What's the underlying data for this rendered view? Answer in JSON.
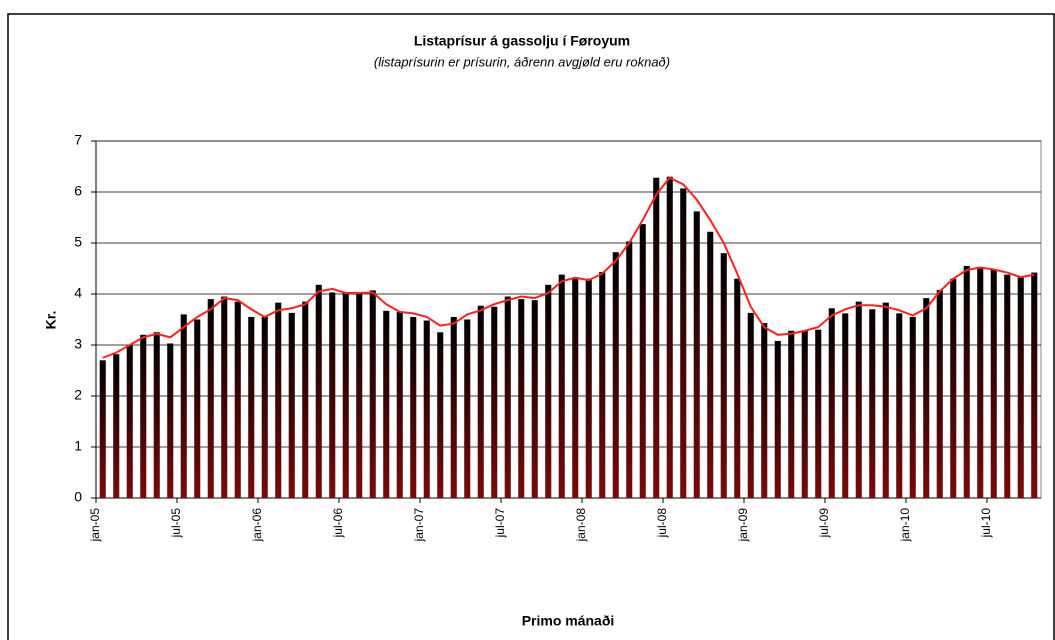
{
  "chart_data": {
    "type": "bar",
    "title": "Listaprísur á gassolju í Føroyum",
    "subtitle": "(listaprísurin er prísurin, áðrenn avgjøld eru roknað)",
    "y_label": "Kr.",
    "x_label": "Primo mánaði",
    "categories": [
      "jan-05",
      null,
      null,
      null,
      null,
      null,
      "jul-05",
      null,
      null,
      null,
      null,
      null,
      "jan-06",
      null,
      null,
      null,
      null,
      null,
      "jul-06",
      null,
      null,
      null,
      null,
      null,
      "jan-07",
      null,
      null,
      null,
      null,
      null,
      "jul-07",
      null,
      null,
      null,
      null,
      null,
      "jan-08",
      null,
      null,
      null,
      null,
      null,
      "jul-08",
      null,
      null,
      null,
      null,
      null,
      "jan-09",
      null,
      null,
      null,
      null,
      null,
      "jul-09",
      null,
      null,
      null,
      null,
      null,
      "jan-10",
      null,
      null,
      null,
      null,
      null,
      "jul-10",
      null,
      null,
      null
    ],
    "series": [
      {
        "type": "bar",
        "color": "#7a0a0a",
        "values": [
          2.7,
          2.82,
          3.0,
          3.2,
          3.25,
          3.03,
          3.6,
          3.5,
          3.9,
          3.95,
          3.85,
          3.55,
          3.55,
          3.83,
          3.63,
          3.85,
          4.18,
          4.03,
          4.03,
          4.03,
          4.07,
          3.67,
          3.65,
          3.55,
          3.48,
          3.25,
          3.55,
          3.5,
          3.77,
          3.75,
          3.95,
          3.9,
          3.88,
          4.18,
          4.38,
          4.3,
          4.3,
          4.43,
          4.82,
          5.03,
          5.37,
          6.28,
          6.3,
          6.07,
          5.62,
          5.22,
          4.8,
          4.3,
          3.63,
          3.43,
          3.08,
          3.28,
          3.28,
          3.3,
          3.72,
          3.62,
          3.85,
          3.7,
          3.83,
          3.62,
          3.55,
          3.92,
          4.08,
          4.3,
          4.55,
          4.5,
          4.48,
          4.38,
          4.35,
          4.42
        ]
      },
      {
        "type": "line",
        "color": "#ff2020",
        "values": [
          2.75,
          2.85,
          3.0,
          3.15,
          3.22,
          3.15,
          3.35,
          3.55,
          3.7,
          3.92,
          3.88,
          3.7,
          3.55,
          3.68,
          3.72,
          3.8,
          4.05,
          4.1,
          4.02,
          4.02,
          4.03,
          3.8,
          3.65,
          3.62,
          3.55,
          3.38,
          3.42,
          3.6,
          3.68,
          3.8,
          3.88,
          3.95,
          3.92,
          4.02,
          4.25,
          4.32,
          4.27,
          4.4,
          4.65,
          5.0,
          5.45,
          5.95,
          6.28,
          6.15,
          5.85,
          5.45,
          5.0,
          4.4,
          3.75,
          3.35,
          3.2,
          3.22,
          3.28,
          3.35,
          3.58,
          3.7,
          3.78,
          3.78,
          3.75,
          3.68,
          3.58,
          3.72,
          4.05,
          4.3,
          4.47,
          4.52,
          4.48,
          4.42,
          4.33,
          4.38
        ]
      }
    ],
    "ylim": [
      0,
      7
    ],
    "yticks": [
      0,
      1,
      2,
      3,
      4,
      5,
      6,
      7
    ],
    "grid": true
  }
}
